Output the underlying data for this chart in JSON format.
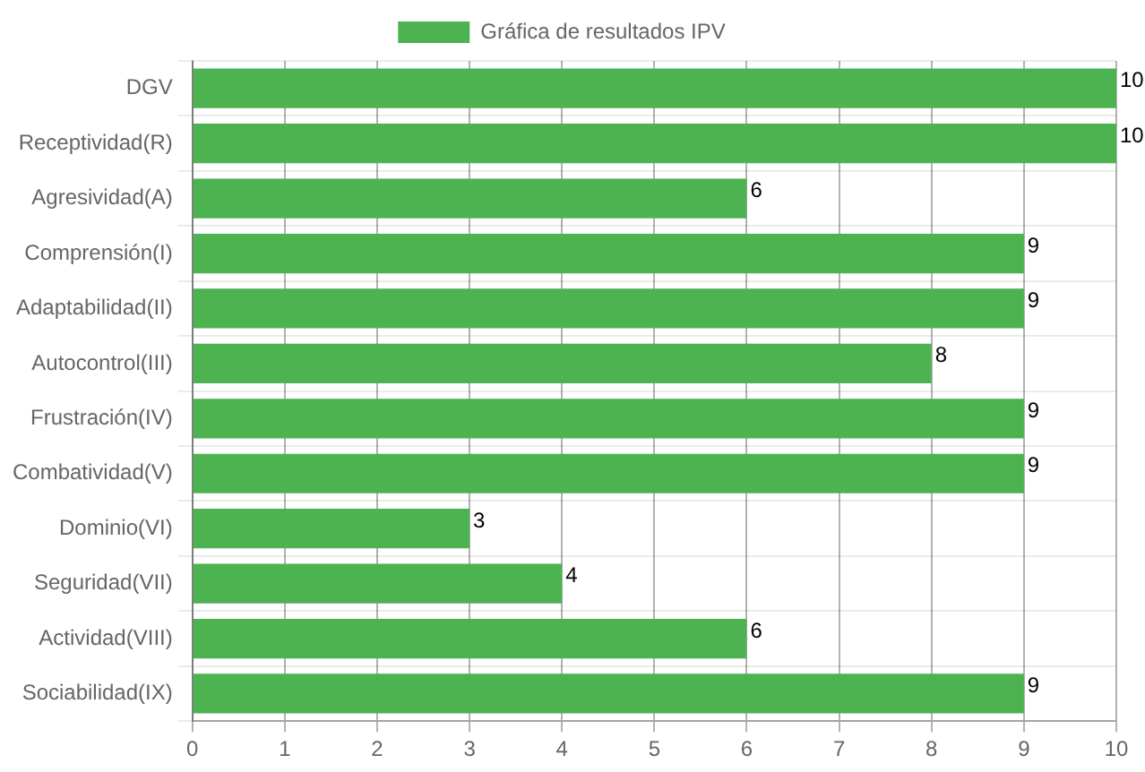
{
  "chart_data": {
    "type": "bar",
    "orientation": "horizontal",
    "categories": [
      "DGV",
      "Receptividad(R)",
      "Agresividad(A)",
      "Comprensión(I)",
      "Adaptabilidad(II)",
      "Autocontrol(III)",
      "Frustración(IV)",
      "Combatividad(V)",
      "Dominio(VI)",
      "Seguridad(VII)",
      "Actividad(VIII)",
      "Sociabilidad(IX)"
    ],
    "series": [
      {
        "name": "Gráfica de resultados IPV",
        "color": "#4cb350",
        "values": [
          10,
          10,
          6,
          9,
          9,
          8,
          9,
          9,
          3,
          4,
          6,
          9
        ]
      }
    ],
    "xlim": [
      0,
      10
    ],
    "xticks": [
      0,
      1,
      2,
      3,
      4,
      5,
      6,
      7,
      8,
      9,
      10
    ],
    "grid": true,
    "legend": "top",
    "data_labels": true
  }
}
